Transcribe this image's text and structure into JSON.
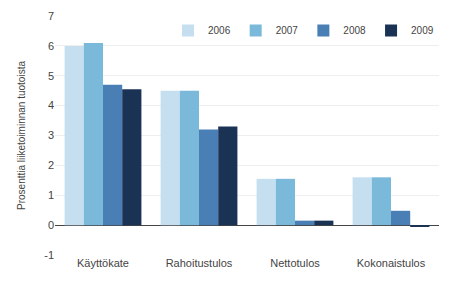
{
  "chart_data": {
    "type": "bar",
    "ylabel": "Prosenttia liiketoiminnan tuotoista",
    "categories": [
      "Käyttökate",
      "Rahoitustulos",
      "Nettotulos",
      "Kokonaistulos"
    ],
    "series": [
      {
        "name": "2006",
        "color": "#c5dff0",
        "values": [
          6.0,
          4.5,
          1.55,
          1.6
        ]
      },
      {
        "name": "2007",
        "color": "#7ab9d9",
        "values": [
          6.1,
          4.5,
          1.55,
          1.6
        ]
      },
      {
        "name": "2008",
        "color": "#4a7fb5",
        "values": [
          4.7,
          3.2,
          0.15,
          0.48
        ]
      },
      {
        "name": "2009",
        "color": "#1a3254",
        "values": [
          4.55,
          3.3,
          0.15,
          -0.05
        ]
      }
    ],
    "ylim": [
      -1,
      7
    ],
    "yticks": [
      -1,
      0,
      1,
      2,
      3,
      4,
      5,
      6,
      7
    ],
    "grid": true,
    "legend": "upper right"
  }
}
